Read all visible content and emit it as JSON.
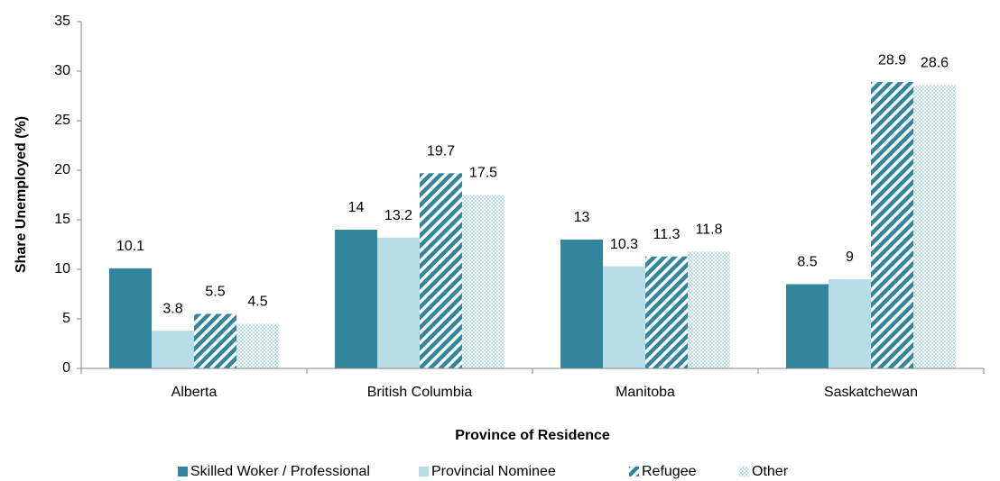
{
  "chart_data": {
    "type": "bar",
    "x_label": "Province of Residence",
    "y_label": "Share Unemployed (%)",
    "categories": [
      "Alberta",
      "British Columbia",
      "Manitoba",
      "Saskatchewan"
    ],
    "series": [
      {
        "name": "Skilled Woker / Professional",
        "color": "#31859c",
        "pattern": "solid",
        "values": [
          10.1,
          14,
          13,
          8.5
        ]
      },
      {
        "name": "Provincial Nominee",
        "color": "#b7dde8",
        "pattern": "solid",
        "values": [
          3.8,
          13.2,
          10.3,
          9
        ]
      },
      {
        "name": "Refugee",
        "color": "#31859c",
        "pattern": "stripes",
        "values": [
          5.5,
          19.7,
          11.3,
          28.9
        ]
      },
      {
        "name": "Other",
        "color": "#b7dde8",
        "pattern": "checker",
        "values": [
          4.5,
          17.5,
          11.8,
          28.6
        ]
      }
    ],
    "ylim": [
      0,
      35
    ],
    "yticks": [
      0,
      5,
      10,
      15,
      20,
      25,
      30,
      35
    ],
    "grid": false,
    "legend": "bottom"
  }
}
